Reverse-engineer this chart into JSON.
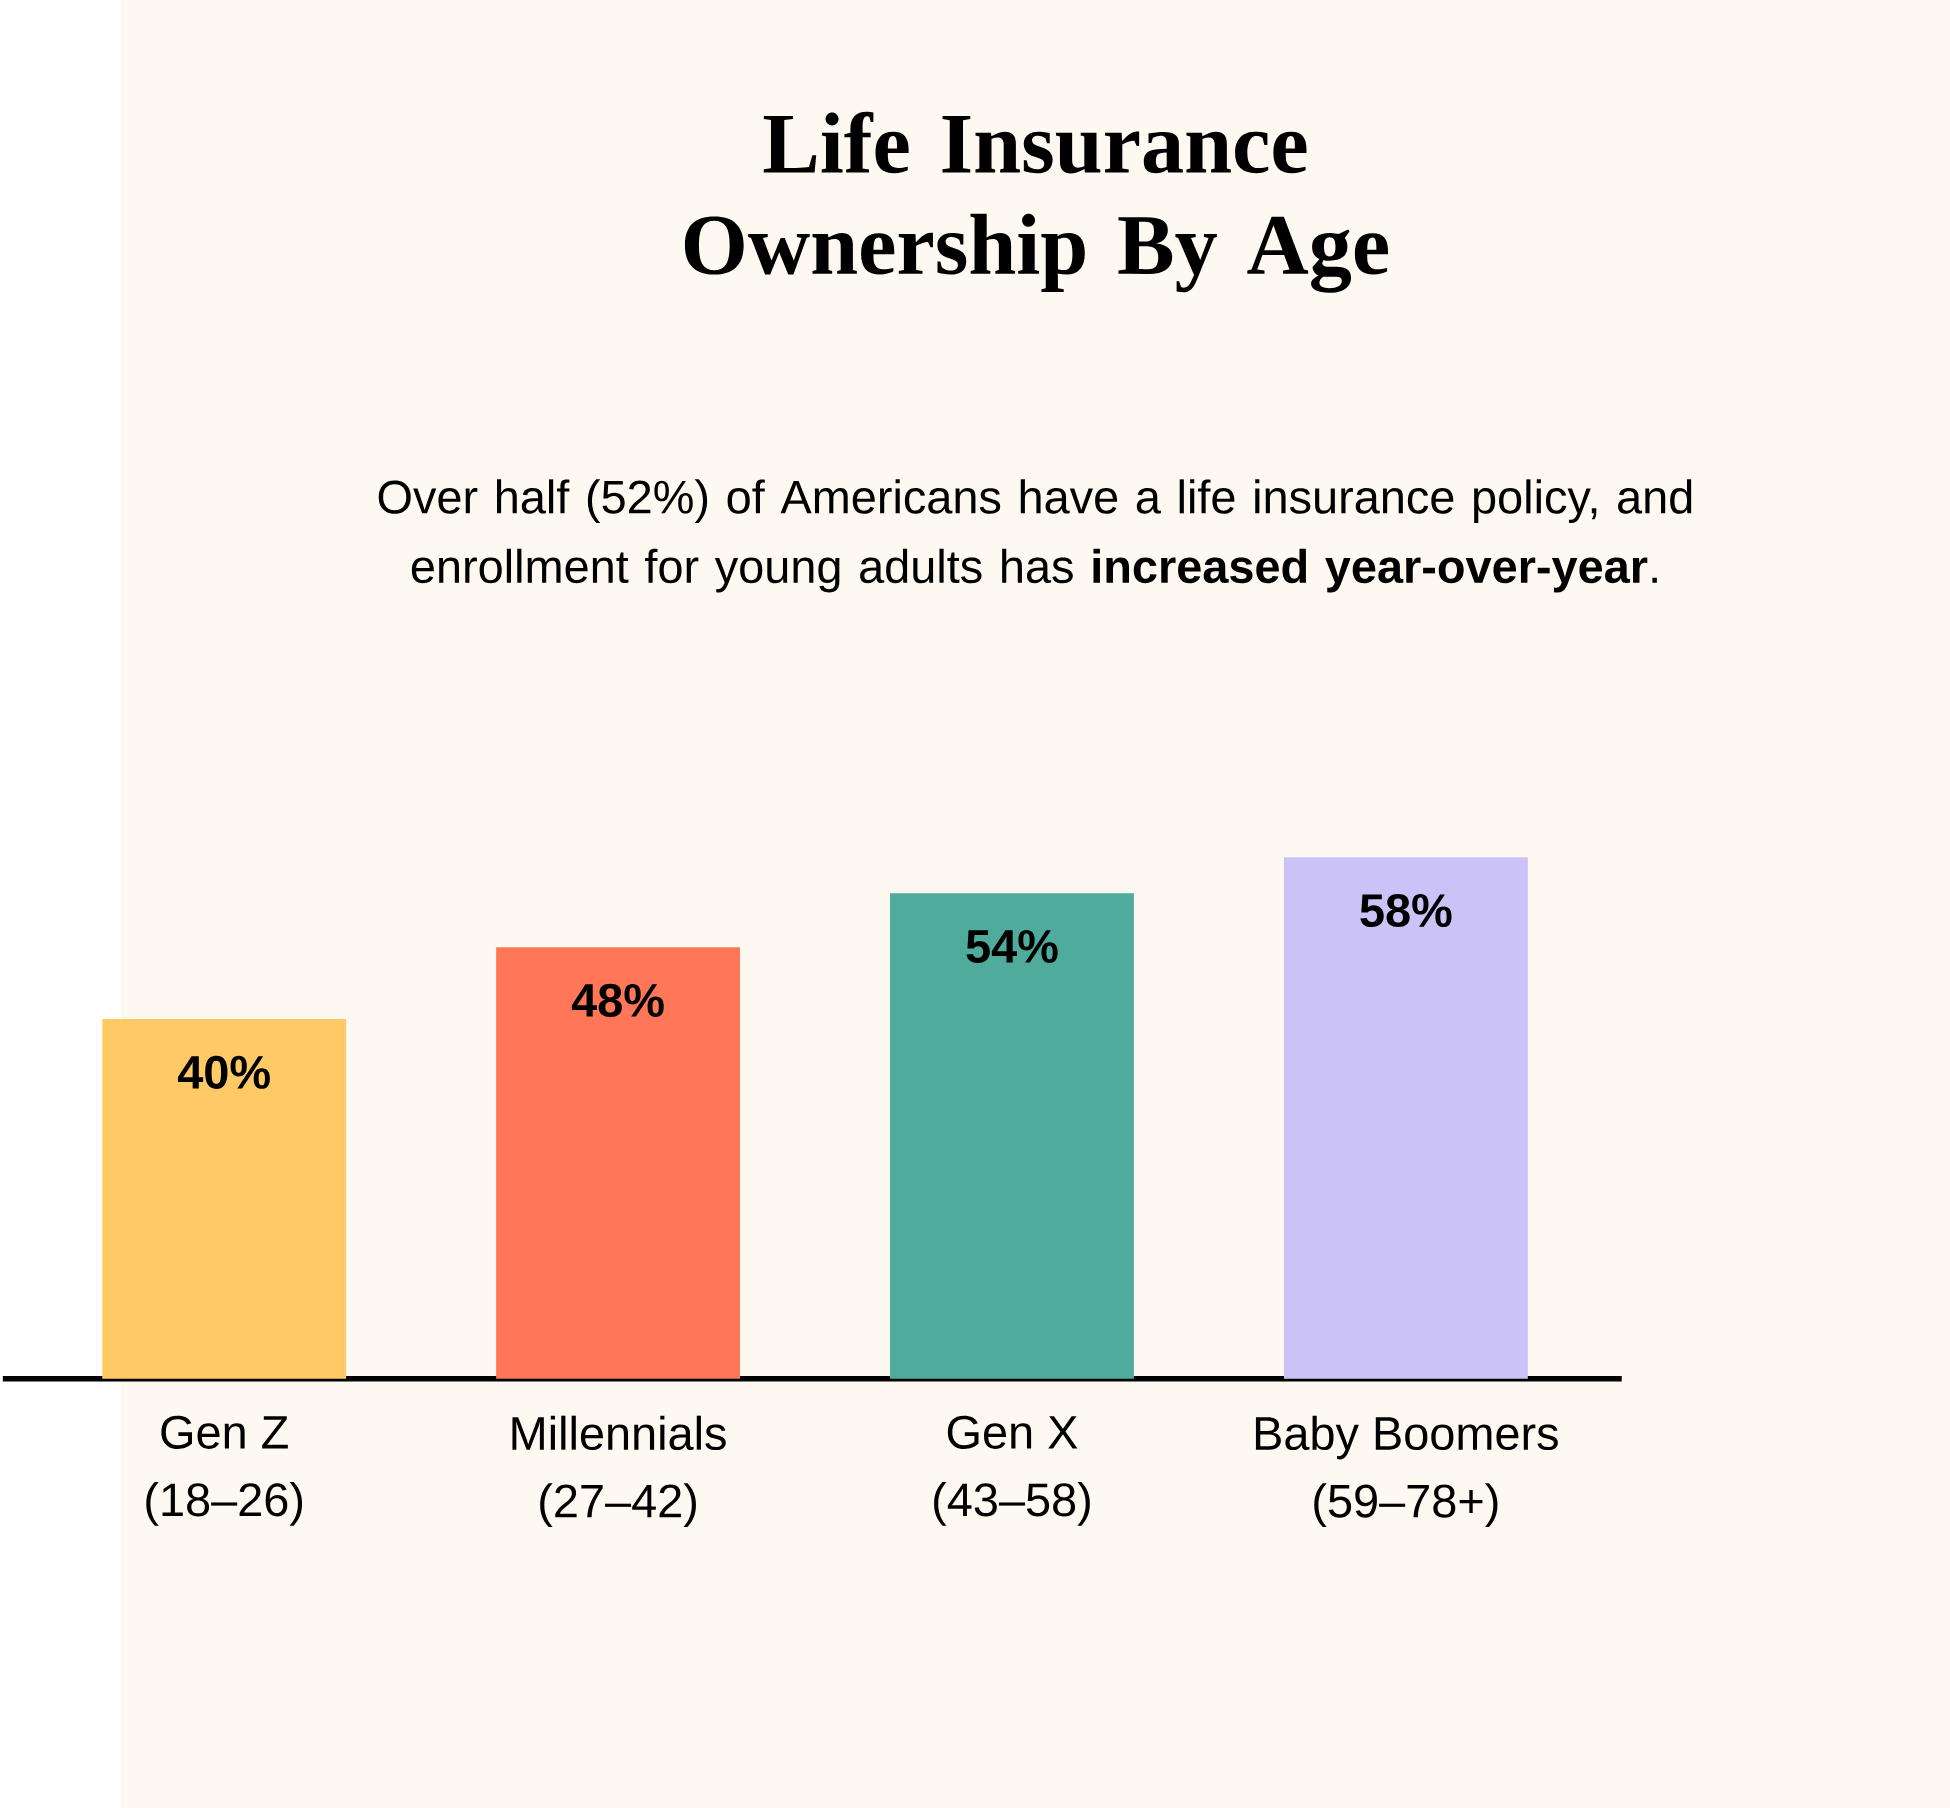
{
  "chart_data": {
    "type": "bar",
    "title": "Life Insurance Ownership By Age",
    "subtitle": "Over half (52%) of Americans have a life insurance policy, and enrollment for young adults has **increased year-over-year**.",
    "categories": [
      "Gen Z\n(18–26)",
      "Millennials\n(27–42)",
      "Gen X\n(43–58)",
      "Baby Boomers\n(59–78+)"
    ],
    "values": [
      40,
      48,
      54,
      58
    ],
    "value_labels": [
      "40%",
      "48%",
      "54%",
      "58%"
    ],
    "colors": [
      "#ffc965",
      "#ff7658",
      "#4fac9c",
      "#cbc3f7"
    ],
    "data_labels": true
  }
}
